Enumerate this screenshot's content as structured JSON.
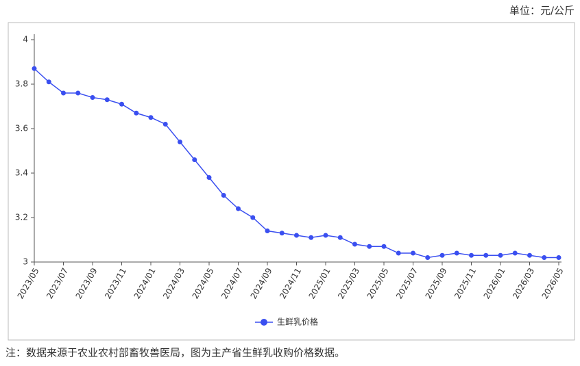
{
  "chart_data": {
    "type": "line",
    "unit_label": "单位：元/公斤",
    "note": "注：数据来源于农业农村部畜牧兽医局，图为主产省生鲜乳收购价格数据。",
    "categories": [
      "2023/05",
      null,
      "2023/07",
      null,
      "2023/09",
      null,
      "2023/11",
      null,
      "2024/01",
      null,
      "2024/03",
      null,
      "2024/05",
      null,
      "2024/07",
      null,
      "2024/09",
      null,
      "2024/11",
      null,
      "2025/01",
      null,
      "2025/03",
      null,
      "2025/05",
      null,
      "2025/07",
      null,
      "2025/09",
      null,
      "2025/11",
      null,
      "2026/01",
      null,
      "2026/03",
      null,
      "2026/05"
    ],
    "series": [
      {
        "name": "生鲜乳价格",
        "color": "#3a4ff0",
        "values": [
          3.87,
          3.81,
          3.76,
          3.76,
          3.74,
          3.73,
          3.71,
          3.67,
          3.65,
          3.62,
          3.54,
          3.46,
          3.38,
          3.3,
          3.24,
          3.2,
          3.14,
          3.13,
          3.12,
          3.11,
          3.12,
          3.11,
          3.08,
          3.07,
          3.07,
          3.04,
          3.04,
          3.02,
          3.03,
          3.04,
          3.03,
          3.03,
          3.03,
          3.04,
          3.03,
          3.02,
          3.02
        ]
      }
    ],
    "ylim": [
      3,
      4
    ],
    "yticks": [
      3,
      3.2,
      3.4,
      3.6,
      3.8,
      4
    ]
  }
}
